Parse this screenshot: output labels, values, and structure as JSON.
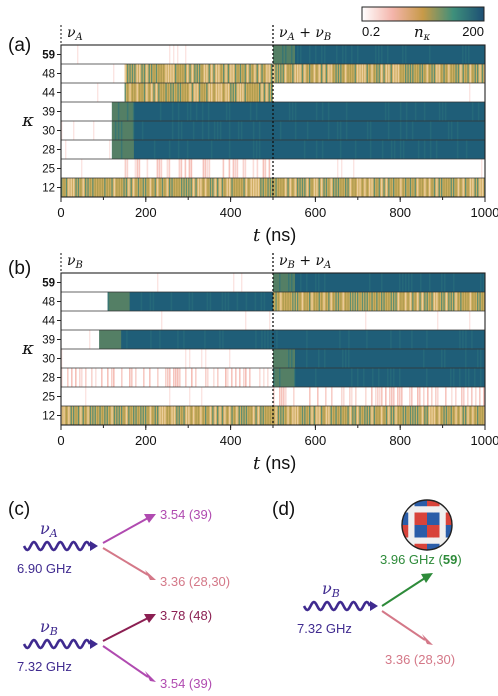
{
  "panel_labels": {
    "a": "(a)",
    "b": "(b)",
    "c": "(c)",
    "d": "(d)"
  },
  "colorbar": {
    "label": "n",
    "sub": "κ",
    "min": "0.2",
    "max": "200",
    "colors": [
      "#ffffff",
      "#f4b5ab",
      "#c79a48",
      "#3e8f7b",
      "#1d4f74"
    ]
  },
  "colors": {
    "nu_a": "#3f2a8f",
    "nu_b": "#3f2a8f",
    "arrow_39": "#b04ab0",
    "arrow_28_30": "#d47888",
    "arrow_48": "#8b1f52",
    "arrow_59": "#2e8b3a"
  },
  "chart_data": [
    {
      "type": "heatmap",
      "panel": "(a)",
      "ylabel": "κ",
      "xlabel_var": "t",
      "xlabel_unit": "(ns)",
      "xlim": [
        0,
        1000
      ],
      "xticks": [
        "0",
        "200",
        "400",
        "600",
        "800",
        "1000"
      ],
      "divider_t": 500,
      "region_labels": [
        {
          "nu": "ν",
          "sub": "A",
          "rest": ""
        },
        {
          "nu": "ν",
          "sub": "A",
          "rest": " + ν",
          "sub2": "B"
        }
      ],
      "rows": [
        {
          "kappa": "59",
          "bold": true,
          "pattern": [
            [
              "off",
              0,
              500
            ],
            [
              "high",
              500,
              1000
            ]
          ]
        },
        {
          "kappa": "48",
          "bold": false,
          "pattern": [
            [
              "off",
              0,
              150
            ],
            [
              "osc",
              150,
              500
            ],
            [
              "osc",
              500,
              1000
            ]
          ]
        },
        {
          "kappa": "44",
          "bold": false,
          "pattern": [
            [
              "off",
              0,
              150
            ],
            [
              "osc",
              150,
              500
            ],
            [
              "off",
              500,
              1000
            ]
          ]
        },
        {
          "kappa": "39",
          "bold": false,
          "pattern": [
            [
              "off",
              0,
              120
            ],
            [
              "high",
              120,
              1000
            ]
          ]
        },
        {
          "kappa": "30",
          "bold": false,
          "pattern": [
            [
              "off",
              0,
              120
            ],
            [
              "high",
              120,
              1000
            ]
          ]
        },
        {
          "kappa": "28",
          "bold": false,
          "pattern": [
            [
              "off",
              0,
              120
            ],
            [
              "high",
              120,
              1000
            ]
          ]
        },
        {
          "kappa": "25",
          "bold": false,
          "pattern": [
            [
              "off",
              0,
              150
            ],
            [
              "light",
              150,
              500
            ],
            [
              "off",
              500,
              1000
            ]
          ]
        },
        {
          "kappa": "12",
          "bold": false,
          "pattern": [
            [
              "osc",
              0,
              500
            ],
            [
              "osc",
              500,
              1000
            ]
          ]
        }
      ]
    },
    {
      "type": "heatmap",
      "panel": "(b)",
      "ylabel": "κ",
      "xlabel_var": "t",
      "xlabel_unit": "(ns)",
      "xlim": [
        0,
        1000
      ],
      "xticks": [
        "0",
        "200",
        "400",
        "600",
        "800",
        "1000"
      ],
      "divider_t": 500,
      "region_labels": [
        {
          "nu": "ν",
          "sub": "B",
          "rest": ""
        },
        {
          "nu": "ν",
          "sub": "B",
          "rest": " + ν",
          "sub2": "A"
        }
      ],
      "rows": [
        {
          "kappa": "59",
          "bold": true,
          "pattern": [
            [
              "off",
              0,
              500
            ],
            [
              "high",
              500,
              1000
            ]
          ]
        },
        {
          "kappa": "48",
          "bold": false,
          "pattern": [
            [
              "off",
              0,
              110
            ],
            [
              "high",
              110,
              500
            ],
            [
              "osc",
              500,
              1000
            ]
          ]
        },
        {
          "kappa": "44",
          "bold": false,
          "pattern": [
            [
              "off",
              0,
              1000
            ]
          ]
        },
        {
          "kappa": "39",
          "bold": false,
          "pattern": [
            [
              "off",
              0,
              90
            ],
            [
              "high",
              90,
              1000
            ]
          ]
        },
        {
          "kappa": "30",
          "bold": false,
          "pattern": [
            [
              "off",
              0,
              500
            ],
            [
              "high",
              500,
              1000
            ]
          ]
        },
        {
          "kappa": "28",
          "bold": false,
          "pattern": [
            [
              "light",
              0,
              500
            ],
            [
              "high",
              500,
              1000
            ]
          ]
        },
        {
          "kappa": "25",
          "bold": false,
          "pattern": [
            [
              "off",
              0,
              500
            ],
            [
              "light",
              500,
              1000
            ]
          ]
        },
        {
          "kappa": "12",
          "bold": false,
          "pattern": [
            [
              "osc",
              0,
              500
            ],
            [
              "osc",
              500,
              1000
            ]
          ]
        }
      ]
    }
  ],
  "diagram_c": {
    "upper": {
      "nu": "ν",
      "sub": "A",
      "freq": "6.90 GHz",
      "out1": "3.54 (39)",
      "out2": "3.36 (28,30)"
    },
    "lower": {
      "nu": "ν",
      "sub": "B",
      "freq": "7.32 GHz",
      "out1": "3.78 (48)",
      "out2": "3.54 (39)"
    }
  },
  "diagram_d": {
    "nu": "ν",
    "sub": "B",
    "freq": "7.32 GHz",
    "out1_pre": "3.96 GHz (",
    "out1_bold": "59",
    "out1_post": ")",
    "out2": "3.36 (28,30)"
  }
}
